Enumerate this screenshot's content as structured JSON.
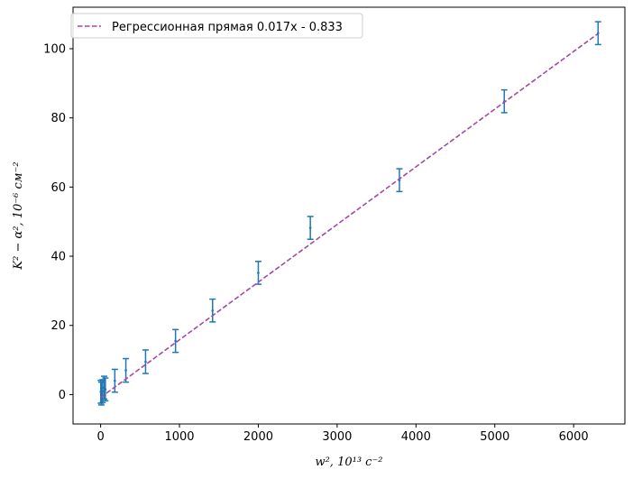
{
  "chart_data": {
    "type": "scatter",
    "xlabel": "w², 10¹³ с⁻²",
    "ylabel": "K² − α², 10⁻⁶ см⁻²",
    "xlim": [
      -350,
      6650
    ],
    "ylim": [
      -8.5,
      112
    ],
    "xticks": [
      0,
      1000,
      2000,
      3000,
      4000,
      5000,
      6000
    ],
    "yticks": [
      0,
      20,
      40,
      60,
      80,
      100
    ],
    "grid": false,
    "legend_position": "top-left",
    "colors": {
      "points": "#1f77b4",
      "regression": "#a349a4"
    },
    "series": [
      {
        "kind": "errorbar",
        "x": [
          2,
          10,
          25,
          45,
          60,
          180,
          320,
          570,
          950,
          1420,
          2000,
          2660,
          3790,
          5120,
          6310
        ],
        "y": [
          0.8,
          0.3,
          1.0,
          2.0,
          1.5,
          4.0,
          7.0,
          9.5,
          15.5,
          24.3,
          35.2,
          48.2,
          62.0,
          84.8,
          104.5
        ],
        "yerr": [
          3.3,
          3.3,
          3.3,
          3.3,
          3.3,
          3.3,
          3.4,
          3.4,
          3.3,
          3.3,
          3.3,
          3.3,
          3.3,
          3.3,
          3.3
        ]
      },
      {
        "kind": "line",
        "name": "Регрессионная прямая 0.017x - 0.833",
        "slope": 0.016673,
        "intercept": -0.833,
        "x_range": [
          0,
          6310
        ]
      }
    ]
  }
}
